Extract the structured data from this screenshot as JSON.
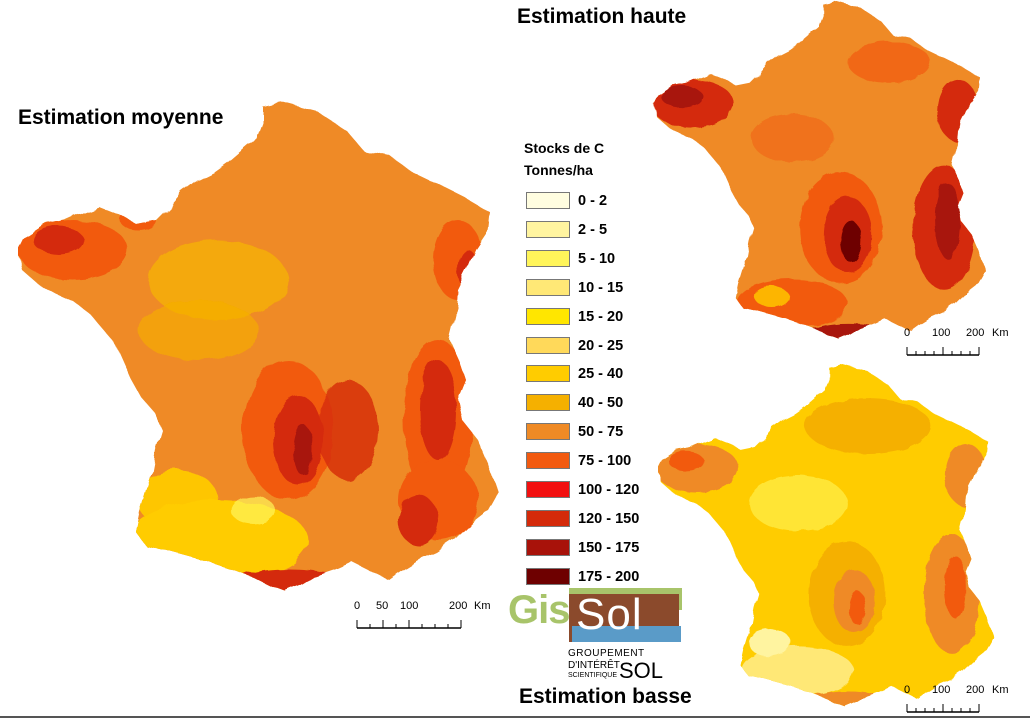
{
  "titles": {
    "moyenne": "Estimation moyenne",
    "haute": "Estimation haute",
    "basse": "Estimation basse"
  },
  "legend": {
    "title1": "Stocks de C",
    "title2": "Tonnes/ha",
    "classes": [
      {
        "label": "0 - 2",
        "color": "#fffde0"
      },
      {
        "label": "2 - 5",
        "color": "#fff4a0"
      },
      {
        "label": "5 - 10",
        "color": "#fff55a"
      },
      {
        "label": "10 - 15",
        "color": "#ffe876"
      },
      {
        "label": "15 - 20",
        "color": "#ffe600"
      },
      {
        "label": "20 - 25",
        "color": "#ffd95a"
      },
      {
        "label": "25 - 40",
        "color": "#ffcc00"
      },
      {
        "label": "40 - 50",
        "color": "#f5b000"
      },
      {
        "label": "50 - 75",
        "color": "#ef8a25"
      },
      {
        "label": "75 - 100",
        "color": "#f25a10"
      },
      {
        "label": "100 - 120",
        "color": "#f21010"
      },
      {
        "label": "120 - 150",
        "color": "#d42a0a"
      },
      {
        "label": "150 - 175",
        "color": "#a8120a"
      },
      {
        "label": "175 - 200",
        "color": "#6e0000"
      }
    ]
  },
  "scalebars": [
    {
      "t0": "0",
      "t1": "50",
      "t2": "100",
      "t3": "200",
      "unit": "Km"
    },
    {
      "t0": "0",
      "t1": "100",
      "t2": "200",
      "unit": "Km"
    },
    {
      "t0": "0",
      "t1": "100",
      "t2": "200",
      "unit": "Km"
    }
  ],
  "logo": {
    "gis": "Gis",
    "sol": "Sol",
    "line1": "GROUPEMENT",
    "line2": "D'INTÉRÊT",
    "line3": "SCIENTIFIQUE",
    "line4": "SOL"
  }
}
